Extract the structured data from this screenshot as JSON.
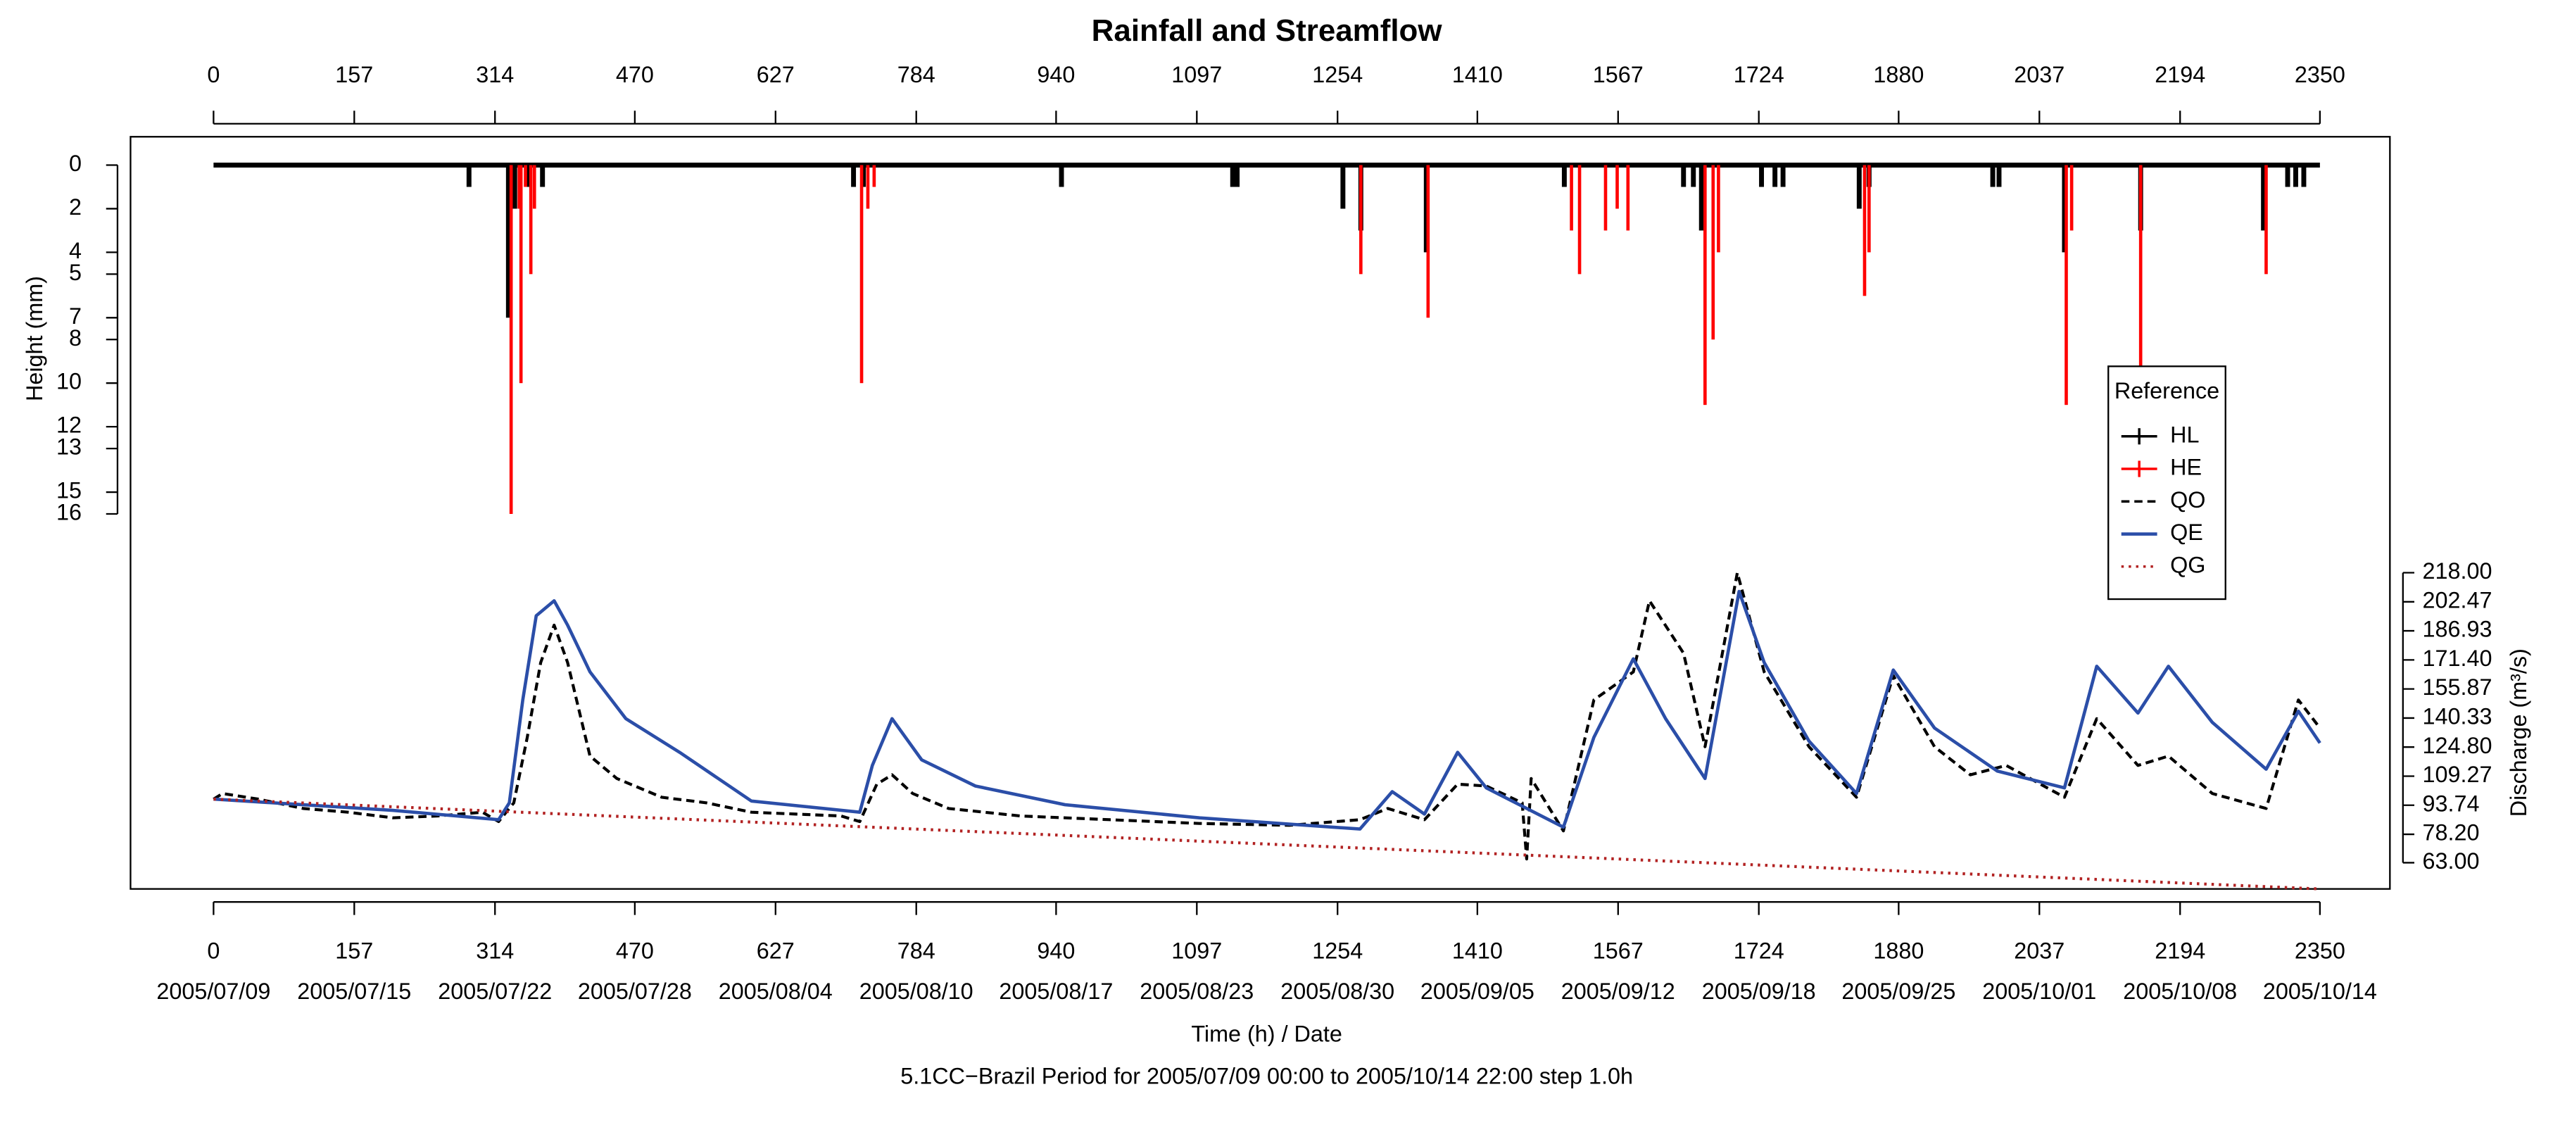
{
  "chart_data": {
    "type": "combo",
    "title": "Rainfall and Streamflow",
    "xlabel": "Time (h) / Date",
    "ylabel": "Height (mm)",
    "y2label": "Discharge (m³/s)",
    "caption": "5.1CC−Brazil Period for 2005/07/09 00:00 to 2005/10/14 22:00 step 1.0h",
    "xlim": [
      0,
      2350
    ],
    "xticks": [
      0,
      157,
      314,
      470,
      627,
      784,
      940,
      1097,
      1254,
      1410,
      1567,
      1724,
      1880,
      2037,
      2194,
      2350
    ],
    "xtick_dates": [
      "2005/07/09",
      "2005/07/15",
      "2005/07/22",
      "2005/07/28",
      "2005/08/04",
      "2005/08/10",
      "2005/08/17",
      "2005/08/23",
      "2005/08/30",
      "2005/09/05",
      "2005/09/12",
      "2005/09/18",
      "2005/09/25",
      "2005/10/01",
      "2005/10/08",
      "2005/10/14"
    ],
    "ylim": [
      -1.3,
      33.2
    ],
    "y_reversed": true,
    "yticks": [
      0,
      2,
      4,
      5,
      7,
      8,
      10,
      12,
      13,
      15,
      16
    ],
    "y2lim": [
      49,
      451
    ],
    "y2ticks": [
      {
        "value": 63,
        "label": "63.00"
      },
      {
        "value": 78.2,
        "label": "78.20"
      },
      {
        "value": 93.74,
        "label": "93.74"
      },
      {
        "value": 109.27,
        "label": "109.27"
      },
      {
        "value": 124.8,
        "label": "124.80"
      },
      {
        "value": 140.33,
        "label": "140.33"
      },
      {
        "value": 155.87,
        "label": "155.87"
      },
      {
        "value": 171.4,
        "label": "171.40"
      },
      {
        "value": 186.93,
        "label": "186.93"
      },
      {
        "value": 202.47,
        "label": "202.47"
      },
      {
        "value": 218,
        "label": "218.00"
      }
    ],
    "legend_title": "Reference",
    "legend": "right",
    "series": [
      {
        "name": "HL",
        "type": "bar",
        "axis": "y",
        "color": "#000000",
        "x": [
          285,
          329,
          336,
          350,
          367,
          714,
          725,
          946,
          1137,
          1142,
          1260,
          1280,
          1353,
          1507,
          1640,
          1651,
          1660,
          1727,
          1742,
          1751,
          1836,
          1847,
          1985,
          1992,
          2065,
          2150,
          2287,
          2314,
          2323,
          2332
        ],
        "values": [
          1,
          7,
          2,
          1,
          1,
          1,
          1,
          1,
          1,
          1,
          2,
          3,
          4,
          1,
          1,
          1,
          3,
          1,
          1,
          1,
          2,
          1,
          1,
          1,
          4,
          3,
          3,
          1,
          1,
          1
        ]
      },
      {
        "name": "HE",
        "type": "bar",
        "axis": "y",
        "color": "#ff0000",
        "x": [
          332,
          341,
          343,
          348,
          354,
          358,
          723,
          730,
          737,
          1280,
          1355,
          1515,
          1524,
          1553,
          1566,
          1578,
          1664,
          1673,
          1679,
          1842,
          1847,
          2067,
          2073,
          2150,
          2290
        ],
        "values": [
          16,
          2,
          10,
          1,
          5,
          2,
          10,
          2,
          1,
          5,
          7,
          3,
          5,
          3,
          2,
          3,
          11,
          8,
          4,
          6,
          4,
          11,
          3,
          10,
          5
        ]
      },
      {
        "name": "QO",
        "type": "line",
        "axis": "y2",
        "color": "#000000",
        "dash": "dashed",
        "x": [
          0,
          10,
          50,
          100,
          150,
          200,
          250,
          300,
          318,
          335,
          350,
          365,
          380,
          395,
          420,
          450,
          500,
          550,
          600,
          650,
          700,
          721,
          740,
          757,
          780,
          820,
          900,
          1000,
          1100,
          1200,
          1279,
          1310,
          1351,
          1388,
          1420,
          1460,
          1465,
          1470,
          1506,
          1540,
          1584,
          1602,
          1640,
          1664,
          1700,
          1730,
          1780,
          1833,
          1874,
          1920,
          1960,
          2000,
          2065,
          2101,
          2147,
          2181,
          2230,
          2290,
          2326,
          2350
        ],
        "values": [
          97,
          100,
          97,
          92,
          90,
          87,
          88,
          90,
          85,
          95,
          130,
          170,
          190,
          170,
          120,
          108,
          98,
          95,
          90,
          89,
          88,
          85,
          105,
          110,
          100,
          92,
          88,
          86,
          84,
          83,
          86,
          92,
          86,
          105,
          104,
          95,
          65,
          108,
          80,
          150,
          165,
          203,
          175,
          125,
          218,
          165,
          125,
          98,
          163,
          125,
          110,
          115,
          98,
          140,
          115,
          120,
          100,
          92,
          150,
          135
        ]
      },
      {
        "name": "QE",
        "type": "line",
        "axis": "y2",
        "color": "#2b4ea8",
        "dash": "solid",
        "x": [
          0,
          100,
          200,
          318,
          330,
          345,
          360,
          380,
          395,
          420,
          460,
          520,
          600,
          721,
          735,
          757,
          790,
          850,
          950,
          1100,
          1279,
          1315,
          1351,
          1388,
          1420,
          1506,
          1540,
          1584,
          1620,
          1664,
          1702,
          1730,
          1780,
          1833,
          1874,
          1920,
          1990,
          2065,
          2101,
          2147,
          2181,
          2230,
          2290,
          2326,
          2350
        ],
        "values": [
          97,
          94,
          91,
          86,
          95,
          150,
          195,
          203,
          190,
          165,
          140,
          122,
          96,
          90,
          115,
          140,
          118,
          104,
          94,
          87,
          81,
          101,
          89,
          122,
          103,
          82,
          130,
          172,
          140,
          108,
          208,
          170,
          128,
          100,
          166,
          135,
          112,
          103,
          168,
          143,
          168,
          138,
          113,
          144,
          127
        ]
      },
      {
        "name": "QG",
        "type": "line",
        "axis": "y2",
        "color": "#b22222",
        "dash": "dotted",
        "x": [
          0,
          2350
        ],
        "values": [
          97,
          49
        ]
      }
    ]
  }
}
